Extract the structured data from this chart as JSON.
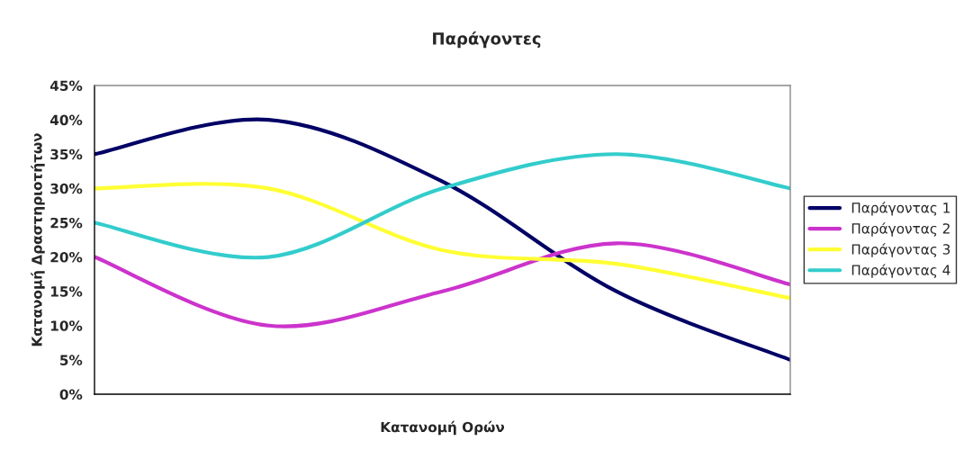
{
  "chart_data": {
    "type": "line",
    "title": "Παράγοντες",
    "xlabel": "Κατανομή Ορών",
    "ylabel": "Κατανομή Δραστηριοτήτων",
    "categories": [
      null,
      null,
      null,
      null,
      null
    ],
    "series": [
      {
        "name": "Παράγοντας 1",
        "color": "#000066",
        "values": [
          35,
          40,
          31,
          15,
          5
        ]
      },
      {
        "name": "Παράγοντας 2",
        "color": "#cc33cc",
        "values": [
          20,
          10,
          15,
          22,
          16
        ]
      },
      {
        "name": "Παράγοντας 3",
        "color": "#ffff33",
        "values": [
          30,
          30,
          21,
          19,
          14
        ]
      },
      {
        "name": "Παράγοντας 4",
        "color": "#33cccc",
        "values": [
          25,
          20,
          30,
          35,
          30
        ]
      }
    ],
    "ylim": [
      0,
      45
    ],
    "yticks": [
      {
        "value": 0,
        "label": "0%"
      },
      {
        "value": 5,
        "label": "5%"
      },
      {
        "value": 10,
        "label": "10%"
      },
      {
        "value": 15,
        "label": "15%"
      },
      {
        "value": 20,
        "label": "20%"
      },
      {
        "value": 25,
        "label": "25%"
      },
      {
        "value": 30,
        "label": "30%"
      },
      {
        "value": 35,
        "label": "35%"
      },
      {
        "value": 40,
        "label": "40%"
      },
      {
        "value": 45,
        "label": "45%"
      }
    ],
    "grid": false,
    "legend": "right",
    "marker": "none",
    "line_style": "solid"
  }
}
